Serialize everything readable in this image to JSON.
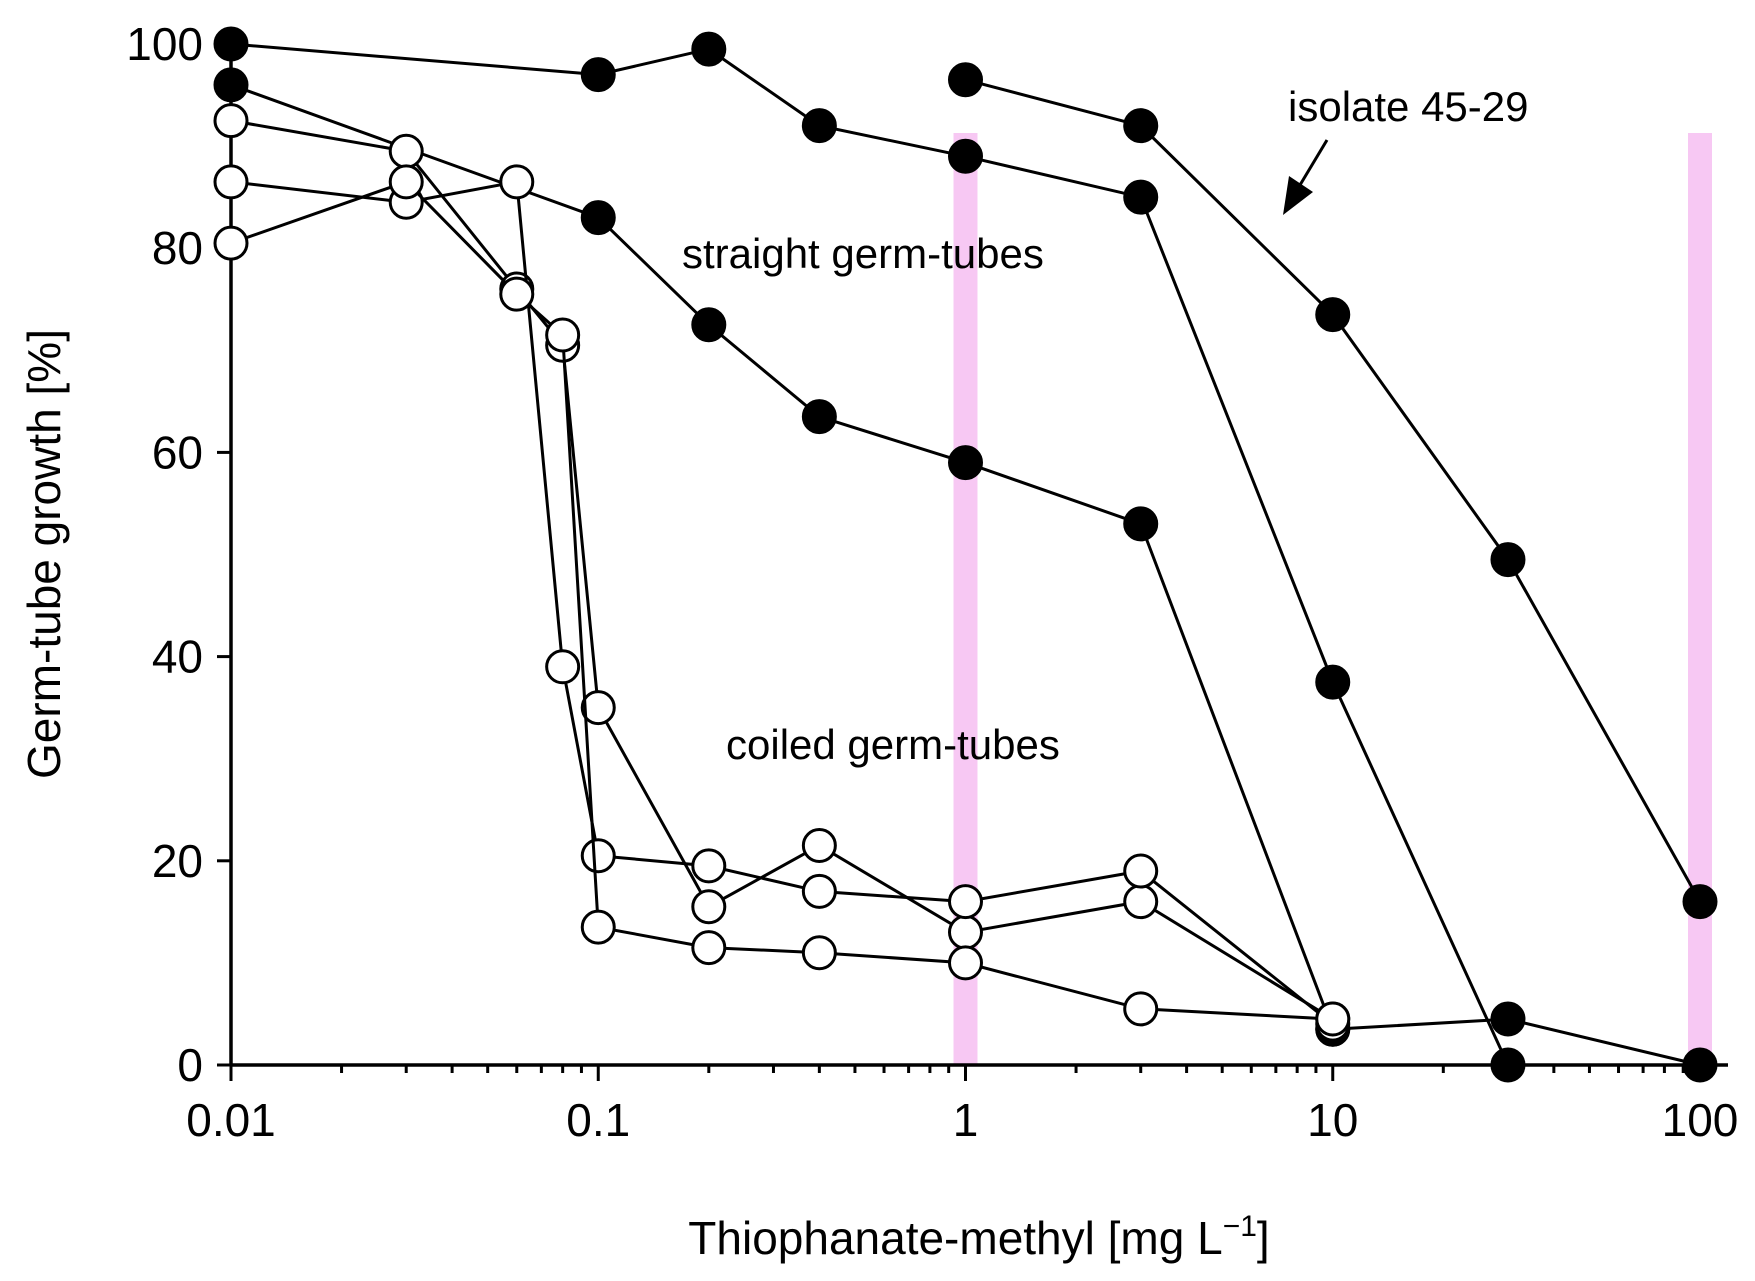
{
  "chart_data": {
    "type": "line",
    "title": "",
    "xlabel": "Thiophanate-methyl [mg L",
    "xlabel_sup": "−1",
    "xlabel_end": "]",
    "ylabel": "Germ-tube growth [%]",
    "xscale": "log",
    "xlim": [
      0.01,
      100
    ],
    "ylim": [
      0,
      100
    ],
    "x_ticks": [
      0.01,
      0.1,
      1,
      10,
      100
    ],
    "x_tick_labels": [
      "0.01",
      "0.1",
      "1",
      "10",
      "100"
    ],
    "y_ticks": [
      0,
      20,
      40,
      60,
      80,
      100
    ],
    "y_tick_labels": [
      "0",
      "20",
      "40",
      "60",
      "80",
      "100"
    ],
    "grid": false,
    "highlight_bands_x": [
      1,
      100
    ],
    "highlight_color": "#f7c8f3",
    "annotations": {
      "straight": "straight germ-tubes",
      "coiled": "coiled germ-tubes",
      "isolate": "isolate 45-29"
    },
    "series": [
      {
        "marker": "filled",
        "x": [
          0.01,
          0.1,
          0.2,
          0.4,
          1,
          3,
          10,
          30
        ],
        "values": [
          100,
          97,
          99.5,
          92,
          89,
          85,
          37.5,
          0
        ]
      },
      {
        "marker": "filled",
        "x": [
          0.01,
          0.1,
          0.2,
          0.4,
          1,
          3,
          10
        ],
        "values": [
          96,
          83,
          72.5,
          63.5,
          59,
          53,
          3.5
        ]
      },
      {
        "marker": "filled",
        "x": [
          1,
          3,
          10,
          30,
          100
        ],
        "values": [
          96.5,
          92,
          73.5,
          49.5,
          16
        ]
      },
      {
        "marker": "filled",
        "x": [
          10,
          30,
          100
        ],
        "values": [
          3.5,
          4.5,
          0
        ]
      },
      {
        "marker": "open",
        "x": [
          0.01,
          0.03,
          0.06,
          0.08,
          0.1,
          0.2,
          0.4,
          1,
          3,
          10
        ],
        "values": [
          92.5,
          89.5,
          76,
          70.5,
          35,
          15.5,
          21.5,
          13,
          16,
          4.5
        ]
      },
      {
        "marker": "open",
        "x": [
          0.01,
          0.03,
          0.06,
          0.08,
          0.1,
          0.2,
          0.4,
          1,
          3,
          10
        ],
        "values": [
          86.5,
          84.5,
          86.5,
          39,
          20.5,
          19.5,
          17,
          16,
          19,
          4
        ]
      },
      {
        "marker": "open",
        "x": [
          0.01,
          0.03,
          0.06,
          0.08,
          0.1,
          0.2,
          0.4,
          1,
          3,
          10
        ],
        "values": [
          80.5,
          86.5,
          75.5,
          71.5,
          13.5,
          11.5,
          11,
          10,
          5.5,
          4.5
        ]
      }
    ]
  }
}
